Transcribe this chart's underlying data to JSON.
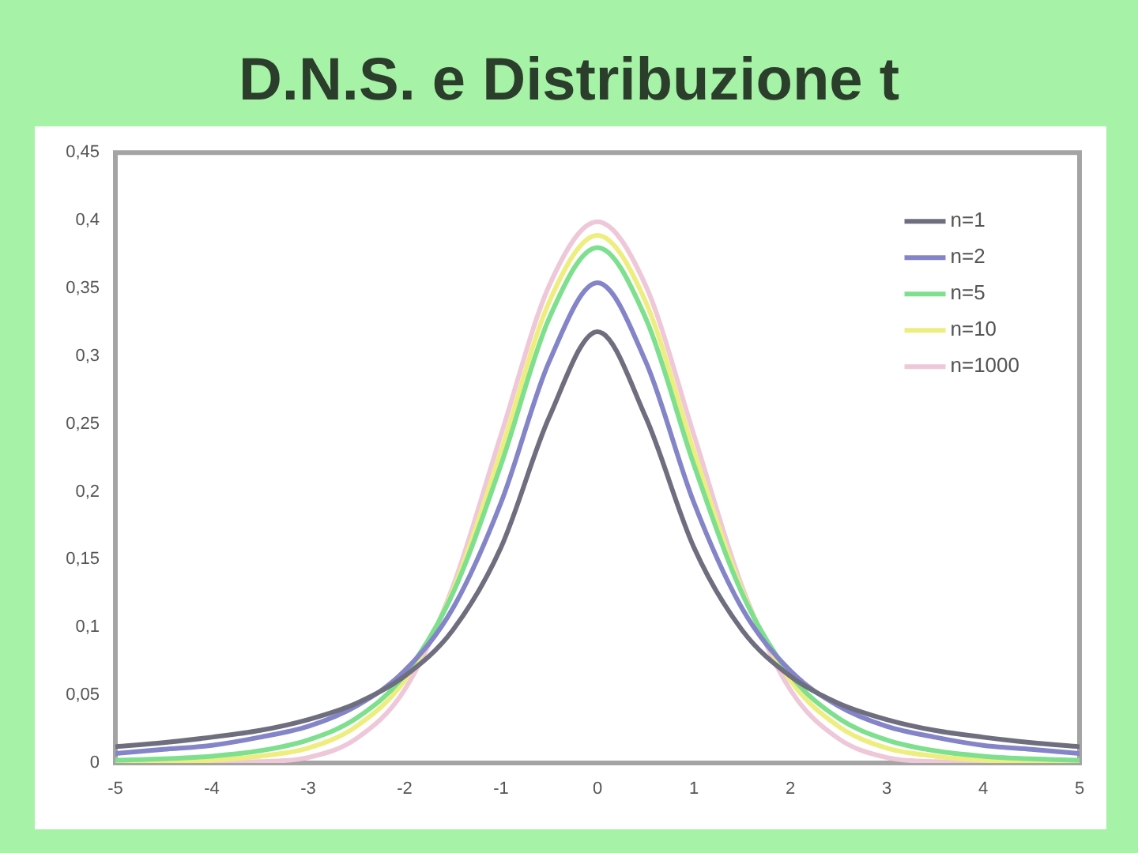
{
  "chart_data": {
    "type": "line",
    "title": "D.N.S. e Distribuzione t",
    "x": [
      -5,
      -4.5,
      -4,
      -3.5,
      -3,
      -2.5,
      -2,
      -1.5,
      -1,
      -0.5,
      0,
      0.5,
      1,
      1.5,
      2,
      2.5,
      3,
      3.5,
      4,
      4.5,
      5
    ],
    "series": [
      {
        "name": "n=1",
        "color": "#6e6e7e",
        "values": [
          0.012,
          0.015,
          0.019,
          0.024,
          0.032,
          0.044,
          0.064,
          0.098,
          0.159,
          0.255,
          0.318,
          0.255,
          0.159,
          0.098,
          0.064,
          0.044,
          0.032,
          0.024,
          0.019,
          0.015,
          0.012
        ]
      },
      {
        "name": "n=2",
        "color": "#8484c8",
        "values": [
          0.007,
          0.01,
          0.013,
          0.019,
          0.027,
          0.042,
          0.068,
          0.114,
          0.192,
          0.296,
          0.354,
          0.296,
          0.192,
          0.114,
          0.068,
          0.042,
          0.027,
          0.019,
          0.013,
          0.01,
          0.007
        ]
      },
      {
        "name": "n=5",
        "color": "#7ee08e",
        "values": [
          0.002,
          0.003,
          0.005,
          0.009,
          0.017,
          0.033,
          0.065,
          0.125,
          0.22,
          0.328,
          0.38,
          0.328,
          0.22,
          0.125,
          0.065,
          0.033,
          0.017,
          0.009,
          0.005,
          0.003,
          0.002
        ]
      },
      {
        "name": "n=10",
        "color": "#eeee80",
        "values": [
          0,
          0.001,
          0.002,
          0.005,
          0.011,
          0.027,
          0.061,
          0.127,
          0.23,
          0.34,
          0.389,
          0.34,
          0.23,
          0.127,
          0.061,
          0.027,
          0.011,
          0.005,
          0.002,
          0.001,
          0
        ]
      },
      {
        "name": "n=1000",
        "color": "#eec8d8",
        "values": [
          0,
          0,
          0,
          0.001,
          0.004,
          0.018,
          0.054,
          0.13,
          0.242,
          0.352,
          0.399,
          0.352,
          0.242,
          0.13,
          0.054,
          0.018,
          0.004,
          0.001,
          0,
          0,
          0
        ]
      }
    ],
    "xlim": [
      -5,
      5
    ],
    "xticks": [
      -5,
      -4,
      -3,
      -2,
      -1,
      0,
      1,
      2,
      3,
      4,
      5
    ],
    "ylim": [
      0,
      0.45
    ],
    "yticks": [
      0,
      {
        "value": 0.05,
        "label": "0,05"
      },
      {
        "value": 0.1,
        "label": "0,1"
      },
      {
        "value": 0.15,
        "label": "0,15"
      },
      {
        "value": 0.2,
        "label": "0,2"
      },
      {
        "value": 0.25,
        "label": "0,25"
      },
      {
        "value": 0.3,
        "label": "0,3"
      },
      {
        "value": 0.35,
        "label": "0,35"
      },
      {
        "value": 0.4,
        "label": "0,4"
      },
      {
        "value": 0.45,
        "label": "0,45"
      }
    ],
    "grid": false,
    "legend": "top right",
    "marker": "none"
  }
}
